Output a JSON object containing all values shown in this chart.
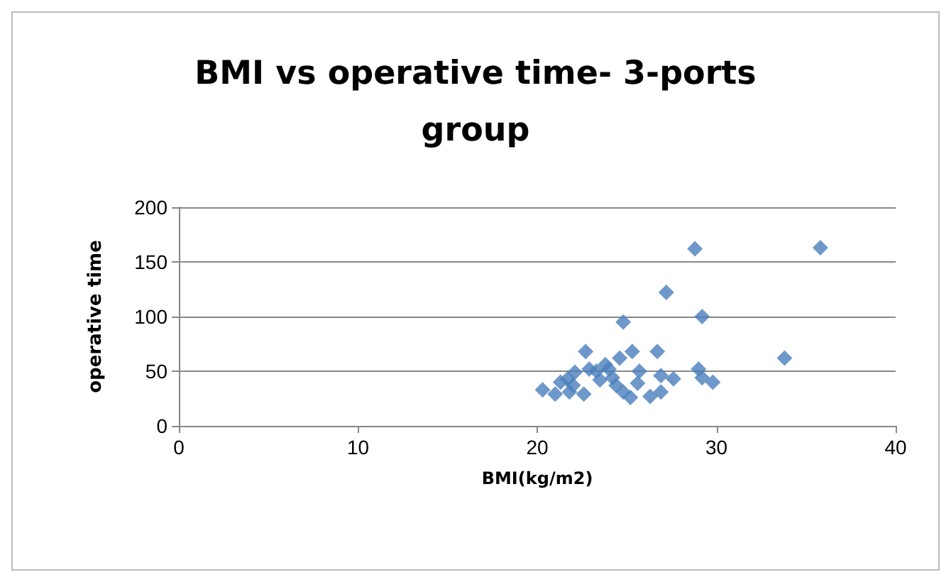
{
  "chart_data": {
    "type": "scatter",
    "title": "BMI vs operative time- 3-ports\ngroup",
    "xlabel": "BMI(kg/m2)",
    "ylabel": "operative time",
    "marker": "diamond",
    "grid": "y",
    "xlim": [
      0,
      40
    ],
    "xticks": [
      0,
      10,
      20,
      30,
      40
    ],
    "ylim": [
      0,
      200
    ],
    "yticks": [
      0,
      50,
      100,
      150,
      200
    ],
    "series": [
      {
        "color": "#4a7ebb",
        "x": [
          28.8,
          35.8,
          27.2,
          24.8,
          29.2,
          33.8,
          22.7,
          25.3,
          26.7,
          24.6,
          23.8,
          22.1,
          22.9,
          25.7,
          29.0,
          21.7,
          20.3,
          21.0,
          21.8,
          22.6,
          23.5,
          24.2,
          24.8,
          25.2,
          25.6,
          26.3,
          26.9,
          26.9,
          27.6,
          29.2,
          29.8,
          21.3,
          23.3,
          24.0,
          22.0,
          24.4
        ],
        "values": [
          162,
          163,
          122,
          95,
          100,
          62,
          68,
          68,
          68,
          62,
          56,
          49,
          52,
          50,
          52,
          43,
          33,
          29,
          31,
          29,
          42,
          44,
          31,
          26,
          39,
          27,
          31,
          46,
          43,
          44,
          40,
          40,
          50,
          52,
          37,
          37
        ]
      }
    ]
  }
}
